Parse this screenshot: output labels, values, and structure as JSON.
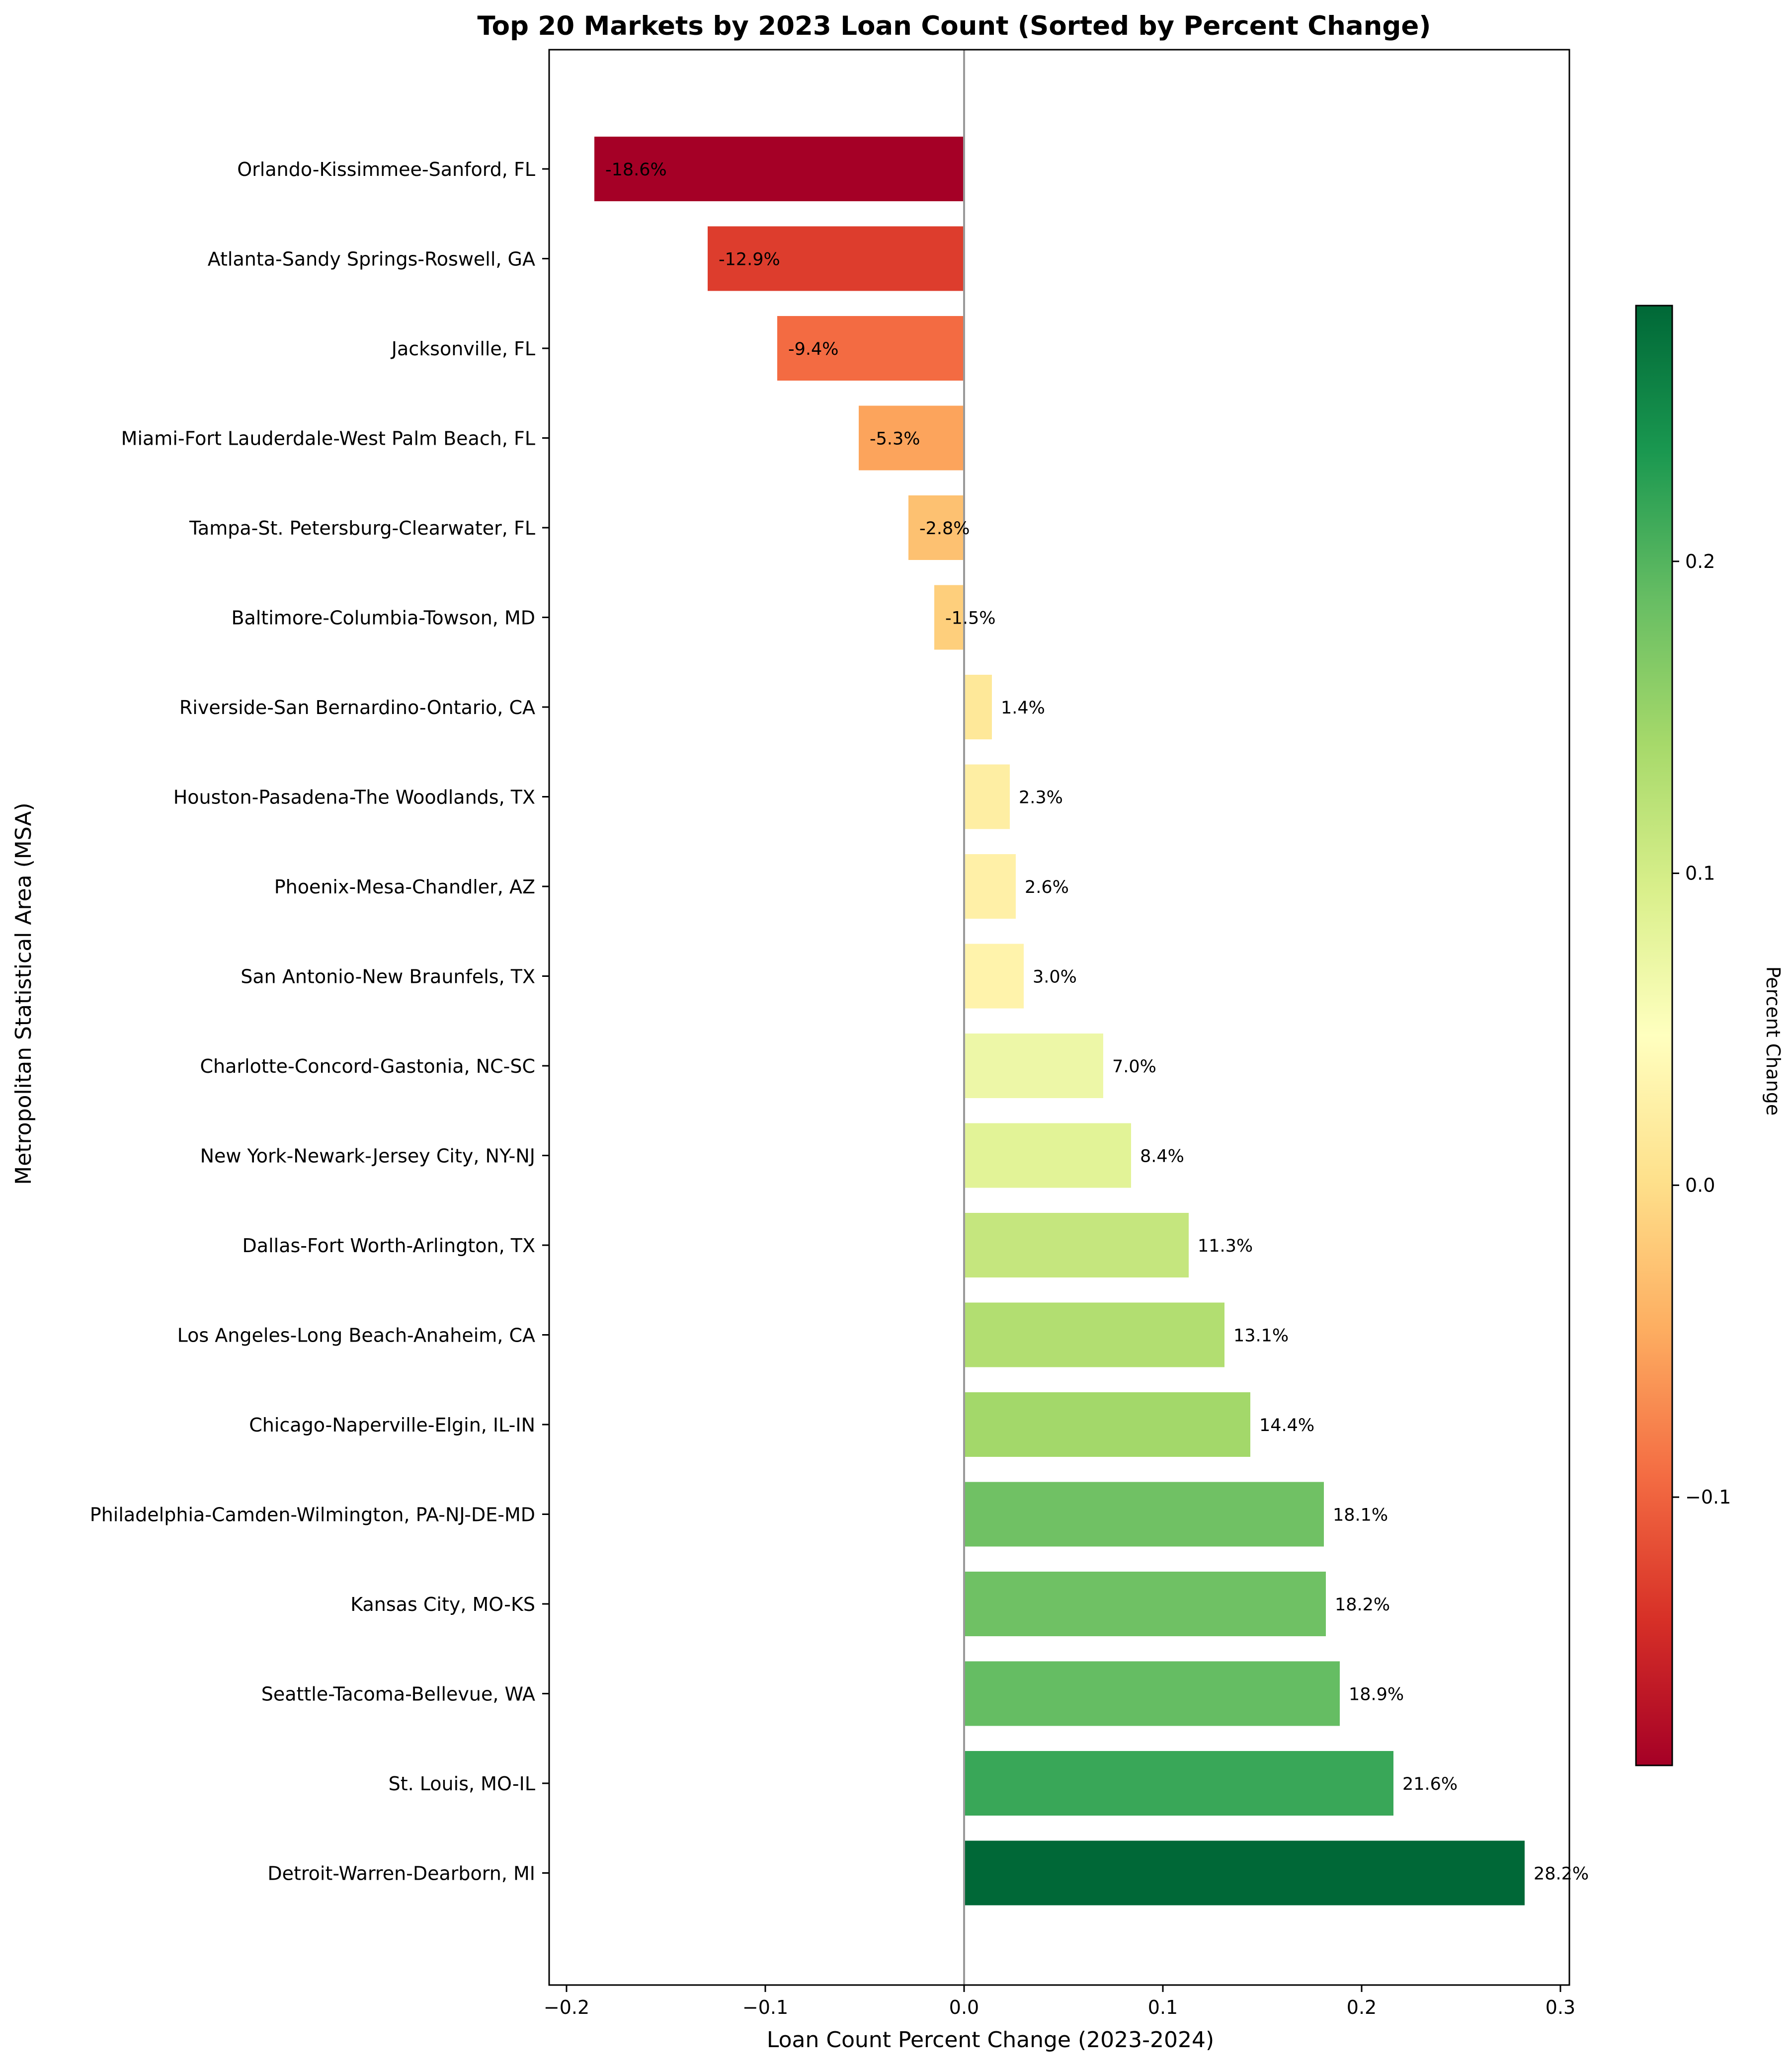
{
  "chart_data": {
    "type": "bar",
    "orientation": "horizontal",
    "title": "Top 20 Markets by 2023 Loan Count (Sorted by Percent Change)",
    "xlabel": "Loan Count Percent Change (2023-2024)",
    "ylabel": "Metropolitan Statistical Area (MSA)",
    "xlim": [
      -0.21,
      0.3
    ],
    "xticks": [
      -0.2,
      -0.1,
      0.0,
      0.1,
      0.2,
      0.3
    ],
    "xtick_labels": [
      "−0.2",
      "−0.1",
      "0.0",
      "0.1",
      "0.2",
      "0.3"
    ],
    "grid": false,
    "colormap": "RdYlGn",
    "colorbar": {
      "label": "Percent Change",
      "range": [
        -0.186,
        0.282
      ],
      "ticks": [
        -0.1,
        0.0,
        0.1,
        0.2
      ],
      "tick_labels": [
        "−0.1",
        "0.0",
        "0.1",
        "0.2"
      ],
      "stops": [
        "#a50026",
        "#d73027",
        "#f46d43",
        "#fdae61",
        "#fee08b",
        "#ffffbf",
        "#d9ef8b",
        "#a6d96a",
        "#66bd63",
        "#1a9850",
        "#006837"
      ]
    },
    "categories": [
      "Orlando-Kissimmee-Sanford, FL",
      "Atlanta-Sandy Springs-Roswell, GA",
      "Jacksonville, FL",
      "Miami-Fort Lauderdale-West Palm Beach, FL",
      "Tampa-St. Petersburg-Clearwater, FL",
      "Baltimore-Columbia-Towson, MD",
      "Riverside-San Bernardino-Ontario, CA",
      "Houston-Pasadena-The Woodlands, TX",
      "Phoenix-Mesa-Chandler, AZ",
      "San Antonio-New Braunfels, TX",
      "Charlotte-Concord-Gastonia, NC-SC",
      "New York-Newark-Jersey City, NY-NJ",
      "Dallas-Fort Worth-Arlington, TX",
      "Los Angeles-Long Beach-Anaheim, CA",
      "Chicago-Naperville-Elgin, IL-IN",
      "Philadelphia-Camden-Wilmington, PA-NJ-DE-MD",
      "Kansas City, MO-KS",
      "Seattle-Tacoma-Bellevue, WA",
      "St. Louis, MO-IL",
      "Detroit-Warren-Dearborn, MI"
    ],
    "values": [
      -0.186,
      -0.129,
      -0.094,
      -0.053,
      -0.028,
      -0.015,
      0.014,
      0.023,
      0.026,
      0.03,
      0.07,
      0.084,
      0.113,
      0.131,
      0.144,
      0.181,
      0.182,
      0.189,
      0.216,
      0.282
    ],
    "data_labels": [
      "-18.6%",
      "-12.9%",
      "-9.4%",
      "-5.3%",
      "-2.8%",
      "-1.5%",
      "1.4%",
      "2.3%",
      "2.6%",
      "3.0%",
      "7.0%",
      "8.4%",
      "11.3%",
      "13.1%",
      "14.4%",
      "18.1%",
      "18.2%",
      "18.9%",
      "21.6%",
      "28.2%"
    ]
  }
}
